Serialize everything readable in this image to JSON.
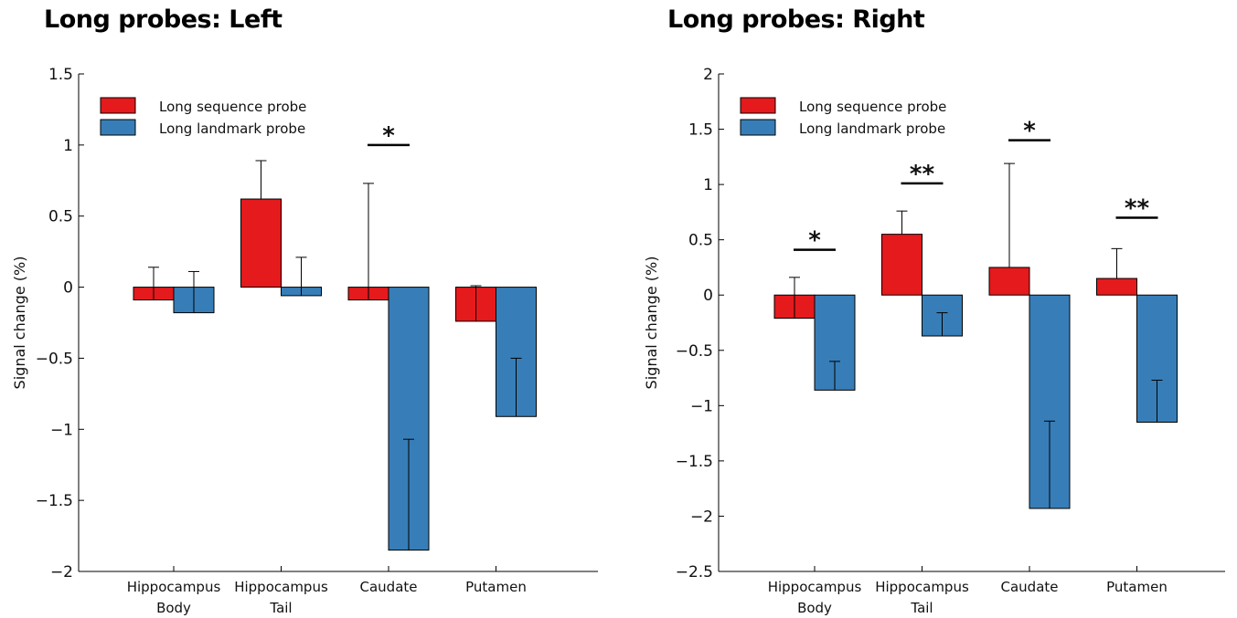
{
  "colors": {
    "sequence": "#e41a1c",
    "landmark": "#377eb8",
    "axis": "#000000"
  },
  "chart_data": [
    {
      "type": "bar",
      "title": "Long probes: Left",
      "ylabel": "Signal change (%)",
      "ylim": [
        -2,
        1.5
      ],
      "yticks": [
        1.5,
        1,
        0.5,
        0,
        -0.5,
        -1,
        -1.5,
        -2
      ],
      "ytick_labels": [
        "1.5",
        "1",
        "0.5",
        "0",
        "−0.5",
        "−1",
        "−1.5",
        "−2"
      ],
      "categories": [
        [
          "Hippocampus",
          "Body"
        ],
        [
          "Hippocampus",
          "Tail"
        ],
        [
          "Caudate"
        ],
        [
          "Putamen"
        ]
      ],
      "legend": {
        "position": "top-left"
      },
      "series": [
        {
          "name": "Long sequence probe",
          "color_key": "sequence",
          "values": [
            -0.09,
            0.62,
            -0.09,
            -0.24
          ],
          "error_ends": [
            0.14,
            0.89,
            0.73,
            0.01
          ]
        },
        {
          "name": "Long landmark probe",
          "color_key": "landmark",
          "values": [
            -0.18,
            -0.06,
            -1.85,
            -0.91
          ],
          "error_ends": [
            0.11,
            0.21,
            -1.07,
            -0.5
          ]
        }
      ],
      "significance": [
        {
          "category": 2,
          "label": "*",
          "y": 1.0
        }
      ]
    },
    {
      "type": "bar",
      "title": "Long probes: Right",
      "ylabel": "Signal change (%)",
      "ylim": [
        -2.5,
        2
      ],
      "yticks": [
        2,
        1.5,
        1,
        0.5,
        0,
        -0.5,
        -1,
        -1.5,
        -2,
        -2.5
      ],
      "ytick_labels": [
        "2",
        "1.5",
        "1",
        "0.5",
        "0",
        "−0.5",
        "−1",
        "−1.5",
        "−2",
        "−2.5"
      ],
      "categories": [
        [
          "Hippocampus",
          "Body"
        ],
        [
          "Hippocampus",
          "Tail"
        ],
        [
          "Caudate"
        ],
        [
          "Putamen"
        ]
      ],
      "legend": {
        "position": "top-left"
      },
      "series": [
        {
          "name": "Long sequence probe",
          "color_key": "sequence",
          "values": [
            -0.21,
            0.55,
            0.25,
            0.15
          ],
          "error_ends": [
            0.16,
            0.76,
            1.19,
            0.42
          ]
        },
        {
          "name": "Long landmark probe",
          "color_key": "landmark",
          "values": [
            -0.86,
            -0.37,
            -1.93,
            -1.15
          ],
          "error_ends": [
            -0.6,
            -0.16,
            -1.14,
            -0.77
          ]
        }
      ],
      "significance": [
        {
          "category": 0,
          "label": "*",
          "y": 0.41
        },
        {
          "category": 1,
          "label": "**",
          "y": 1.01
        },
        {
          "category": 2,
          "label": "*",
          "y": 1.4
        },
        {
          "category": 3,
          "label": "**",
          "y": 0.7
        }
      ]
    }
  ]
}
